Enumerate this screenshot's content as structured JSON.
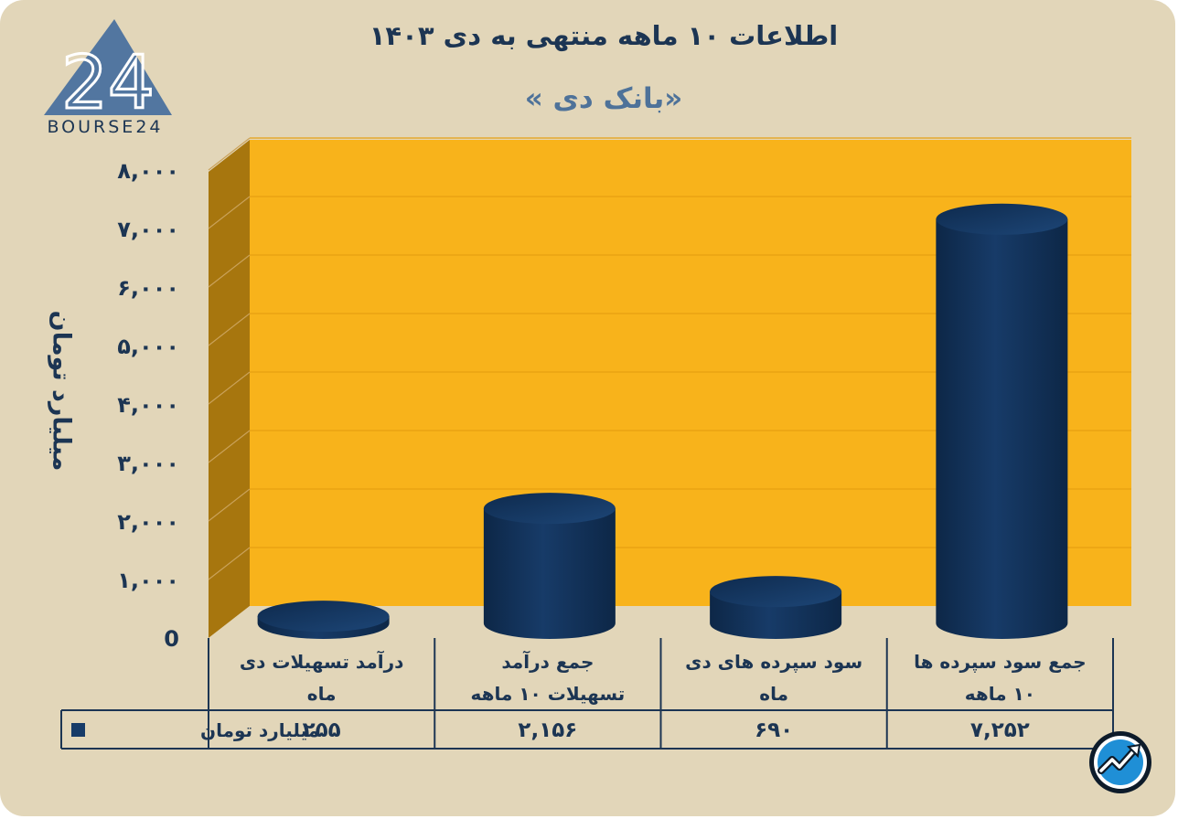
{
  "title": "اطلاعات ۱۰ ماهه منتهی به دی ۱۴۰۳",
  "subtitle": "«بانک دی »",
  "logo": {
    "text": "BOURSE24",
    "mark": "24"
  },
  "colors": {
    "background": "#e2d6b9",
    "plot": "#f8b31b",
    "plot_side": "#a7760e",
    "bar": "#173b68",
    "bar_dark": "#0d2747",
    "text": "#1c3553",
    "subtitle": "#4e7299"
  },
  "chart_data": {
    "type": "bar",
    "ylabel": "میلیارد تومان",
    "ylim": [
      0,
      8000
    ],
    "yticks": [
      "0",
      "۱,۰۰۰",
      "۲,۰۰۰",
      "۳,۰۰۰",
      "۴,۰۰۰",
      "۵,۰۰۰",
      "۶,۰۰۰",
      "۷,۰۰۰",
      "۸,۰۰۰"
    ],
    "categories": [
      [
        "جمع سود سپرده ها",
        "۱۰ ماهه"
      ],
      [
        "سود سپرده های دی",
        "ماه"
      ],
      [
        "جمع درآمد",
        "تسهیلات ۱۰ ماهه"
      ],
      [
        "درآمد تسهیلات دی",
        "ماه"
      ]
    ],
    "series": [
      {
        "name": "میلیارد تومان",
        "values": [
          7252,
          690,
          2156,
          255
        ],
        "labels": [
          "۷,۲۵۲",
          "۶۹۰",
          "۲,۱۵۶",
          "۲۵۵"
        ]
      }
    ],
    "grid": true
  },
  "badge": {
    "icon": "trend-up-icon"
  }
}
